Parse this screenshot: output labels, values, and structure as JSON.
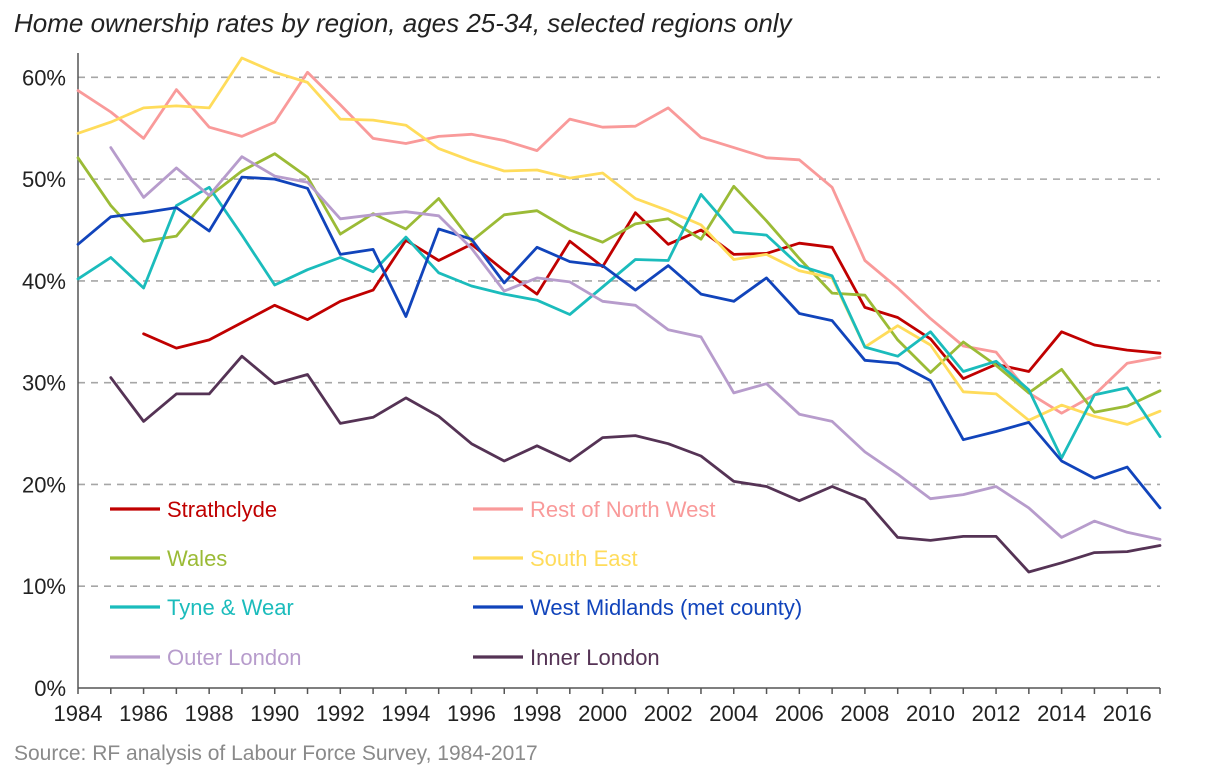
{
  "chart_data": {
    "type": "line",
    "title": "Home ownership rates by region, ages 25-34, selected regions only",
    "source": "Source: RF analysis of Labour Force Survey, 1984-2017",
    "xlabel": "",
    "ylabel": "",
    "xlim": [
      1984,
      2017
    ],
    "ylim": [
      0,
      62
    ],
    "x_ticks": [
      "1984",
      "1986",
      "1988",
      "1990",
      "1992",
      "1994",
      "1996",
      "1998",
      "2000",
      "2002",
      "2004",
      "2006",
      "2008",
      "2010",
      "2012",
      "2014",
      "2016"
    ],
    "y_ticks": [
      "0%",
      "10%",
      "20%",
      "30%",
      "40%",
      "50%",
      "60%"
    ],
    "grid": true,
    "legend_placement": "bottom-left",
    "x": [
      1984,
      1985,
      1986,
      1987,
      1988,
      1989,
      1990,
      1991,
      1992,
      1993,
      1994,
      1995,
      1996,
      1997,
      1998,
      1999,
      2000,
      2001,
      2002,
      2003,
      2004,
      2005,
      2006,
      2007,
      2008,
      2009,
      2010,
      2011,
      2012,
      2013,
      2014,
      2015,
      2016,
      2017
    ],
    "series": [
      {
        "name": "Strathclyde",
        "color": "#c00000",
        "values": [
          null,
          null,
          34.8,
          33.4,
          34.2,
          35.9,
          37.6,
          36.2,
          38.0,
          39.1,
          44.0,
          42.0,
          43.6,
          41.0,
          38.7,
          43.9,
          41.4,
          46.7,
          43.6,
          45.0,
          42.6,
          42.7,
          43.7,
          43.3,
          37.4,
          36.4,
          34.3,
          30.4,
          31.8,
          31.1,
          35.0,
          33.7,
          33.2,
          32.9
        ]
      },
      {
        "name": "Rest of North West",
        "color": "#f99a9a",
        "values": [
          58.7,
          56.6,
          54.0,
          58.8,
          55.1,
          54.2,
          55.6,
          60.5,
          57.3,
          54.0,
          53.5,
          54.2,
          54.4,
          53.8,
          52.8,
          55.9,
          55.1,
          55.2,
          57.0,
          54.1,
          53.1,
          52.1,
          51.9,
          49.2,
          42.0,
          39.3,
          36.3,
          33.6,
          33.0,
          29.0,
          27.0,
          28.8,
          31.9,
          32.5
        ]
      },
      {
        "name": "Wales",
        "color": "#9bbb36",
        "values": [
          52.1,
          47.4,
          43.9,
          44.4,
          48.3,
          50.8,
          52.5,
          50.2,
          44.6,
          46.6,
          45.1,
          48.1,
          43.9,
          46.5,
          46.9,
          45.0,
          43.8,
          45.6,
          46.1,
          44.1,
          49.3,
          45.9,
          42.2,
          38.8,
          38.6,
          34.2,
          31.0,
          34.0,
          31.7,
          29.0,
          31.3,
          27.1,
          27.7,
          29.2
        ]
      },
      {
        "name": "South East",
        "color": "#ffdc5b",
        "values": [
          54.5,
          55.6,
          57.0,
          57.2,
          57.0,
          61.9,
          60.5,
          59.5,
          55.9,
          55.8,
          55.3,
          53.0,
          51.8,
          50.8,
          50.9,
          50.1,
          50.6,
          48.1,
          46.9,
          45.5,
          42.1,
          42.6,
          41.0,
          40.3,
          33.5,
          35.6,
          33.7,
          29.1,
          28.9,
          26.3,
          27.8,
          26.7,
          25.9,
          27.2
        ]
      },
      {
        "name": "Tyne & Wear",
        "color": "#1bbcbc",
        "values": [
          40.2,
          42.3,
          39.3,
          47.4,
          49.2,
          44.5,
          39.6,
          41.1,
          42.3,
          40.9,
          44.3,
          40.8,
          39.5,
          38.7,
          38.1,
          36.7,
          39.4,
          42.1,
          42.0,
          48.5,
          44.8,
          44.5,
          41.5,
          40.5,
          33.5,
          32.6,
          35.0,
          31.1,
          32.1,
          29.3,
          22.6,
          28.8,
          29.5,
          24.7
        ]
      },
      {
        "name": "West Midlands (met county)",
        "color": "#1144bb",
        "values": [
          43.6,
          46.3,
          46.7,
          47.2,
          44.9,
          50.2,
          50.0,
          49.1,
          42.6,
          43.1,
          36.5,
          45.1,
          44.1,
          39.8,
          43.3,
          41.9,
          41.5,
          39.1,
          41.5,
          38.7,
          38.0,
          40.3,
          36.8,
          36.1,
          32.2,
          31.9,
          30.2,
          24.4,
          25.2,
          26.1,
          22.3,
          20.6,
          21.7,
          17.7
        ]
      },
      {
        "name": "Outer London",
        "color": "#b79ccc",
        "values": [
          null,
          53.1,
          48.2,
          51.1,
          48.4,
          52.2,
          50.3,
          49.7,
          46.1,
          46.5,
          46.8,
          46.4,
          43.2,
          39.0,
          40.3,
          39.9,
          38.0,
          37.6,
          35.2,
          34.5,
          29.0,
          29.9,
          26.9,
          26.2,
          23.2,
          21.0,
          18.6,
          19.0,
          19.8,
          17.7,
          14.8,
          16.4,
          15.3,
          14.6
        ]
      },
      {
        "name": "Inner London",
        "color": "#553355",
        "values": [
          null,
          30.5,
          26.2,
          28.9,
          28.9,
          32.6,
          29.9,
          30.8,
          26.0,
          26.6,
          28.5,
          26.7,
          24.0,
          22.3,
          23.8,
          22.3,
          24.6,
          24.8,
          24.0,
          22.8,
          20.3,
          19.8,
          18.4,
          19.8,
          18.5,
          14.8,
          14.5,
          14.9,
          14.9,
          11.4,
          12.3,
          13.3,
          13.4,
          14.0
        ]
      }
    ]
  }
}
